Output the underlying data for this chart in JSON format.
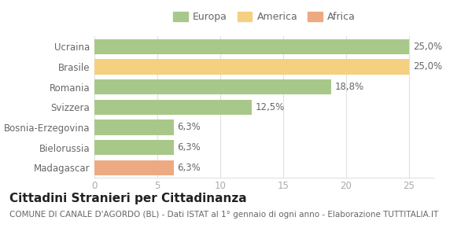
{
  "categories": [
    "Madagascar",
    "Bielorussia",
    "Bosnia-Erzegovina",
    "Svizzera",
    "Romania",
    "Brasile",
    "Ucraina"
  ],
  "values": [
    6.3,
    6.3,
    6.3,
    12.5,
    18.8,
    25.0,
    25.0
  ],
  "colors": [
    "#edaa82",
    "#a8c88a",
    "#a8c88a",
    "#a8c88a",
    "#a8c88a",
    "#f5d080",
    "#a8c88a"
  ],
  "labels": [
    "6,3%",
    "6,3%",
    "6,3%",
    "12,5%",
    "18,8%",
    "25,0%",
    "25,0%"
  ],
  "legend_items": [
    {
      "label": "Europa",
      "color": "#a8c88a"
    },
    {
      "label": "America",
      "color": "#f5d080"
    },
    {
      "label": "Africa",
      "color": "#edaa82"
    }
  ],
  "title": "Cittadini Stranieri per Cittadinanza",
  "subtitle": "COMUNE DI CANALE D'AGORDO (BL) - Dati ISTAT al 1° gennaio di ogni anno - Elaborazione TUTTITALIA.IT",
  "xlim": [
    0,
    27
  ],
  "xticks": [
    0,
    5,
    10,
    15,
    20,
    25
  ],
  "background_color": "#ffffff",
  "bar_height": 0.75,
  "grid_color": "#e0e0e0",
  "label_fontsize": 8.5,
  "title_fontsize": 11,
  "subtitle_fontsize": 7.5,
  "tick_fontsize": 8.5,
  "category_fontsize": 8.5
}
